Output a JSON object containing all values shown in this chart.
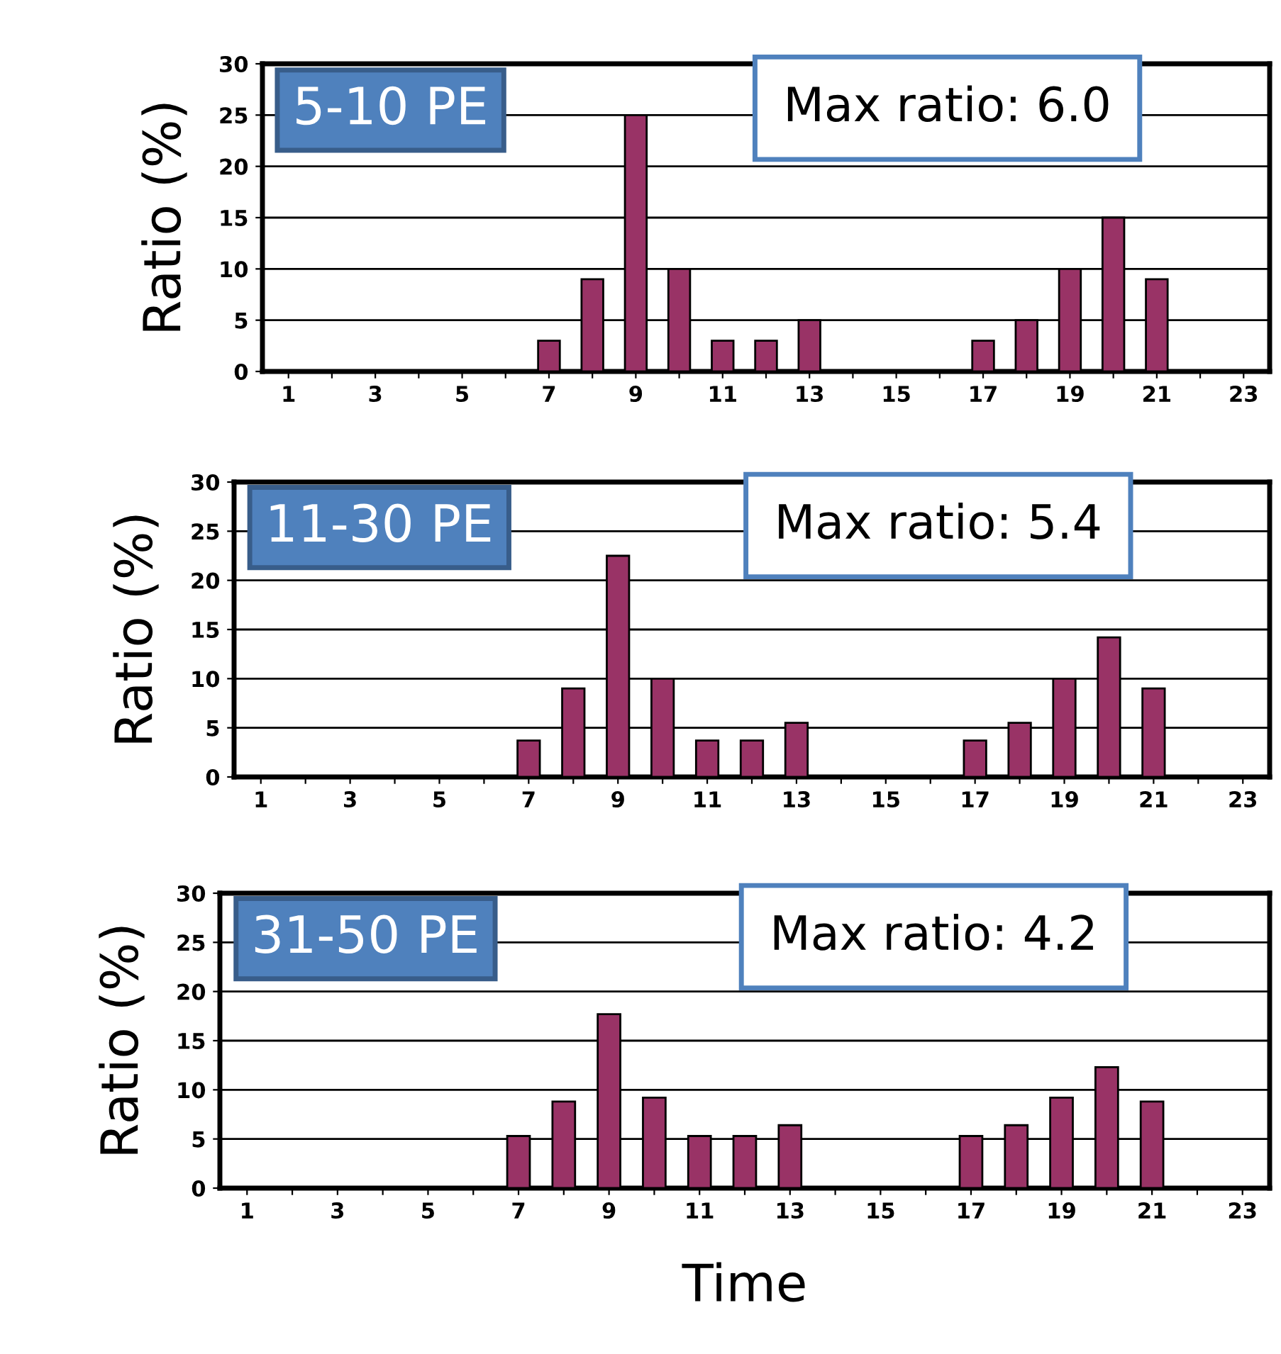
{
  "chart_data": [
    {
      "type": "bar",
      "title": "5-10 PE",
      "ylabel": "Ratio (%)",
      "annotations": [
        "Max ratio: 6.0"
      ],
      "categories": [
        "1",
        null,
        "3",
        null,
        "5",
        null,
        "7",
        null,
        "9",
        null,
        "11",
        null,
        "13",
        null,
        "15",
        null,
        "17",
        null,
        "19",
        null,
        "21",
        null,
        "23"
      ],
      "values": [
        0,
        0,
        0,
        0,
        0,
        0,
        3,
        9,
        25,
        10,
        3,
        3,
        5,
        0,
        0,
        0,
        3,
        5,
        10,
        15,
        9,
        0,
        0
      ],
      "color": "#993366",
      "ylim": [
        0,
        30
      ],
      "yticks": [
        0,
        5,
        10,
        15,
        20,
        25,
        30
      ],
      "grid": "y",
      "legend": false
    },
    {
      "type": "bar",
      "title": "11-30 PE",
      "ylabel": "Ratio (%)",
      "annotations": [
        "Max ratio: 5.4"
      ],
      "categories": [
        "1",
        null,
        "3",
        null,
        "5",
        null,
        "7",
        null,
        "9",
        null,
        "11",
        null,
        "13",
        null,
        "15",
        null,
        "17",
        null,
        "19",
        null,
        "21",
        null,
        "23"
      ],
      "values": [
        0,
        0,
        0,
        0,
        0,
        0,
        3.7,
        9,
        22.5,
        10,
        3.7,
        3.7,
        5.5,
        0,
        0,
        0,
        3.7,
        5.5,
        10,
        14.2,
        9,
        0,
        0
      ],
      "color": "#993366",
      "ylim": [
        0,
        30
      ],
      "yticks": [
        0,
        5,
        10,
        15,
        20,
        25,
        30
      ],
      "grid": "y",
      "legend": false
    },
    {
      "type": "bar",
      "title": "31-50 PE",
      "ylabel": "Ratio (%)",
      "xlabel": "Time",
      "annotations": [
        "Max ratio: 4.2"
      ],
      "categories": [
        "1",
        null,
        "3",
        null,
        "5",
        null,
        "7",
        null,
        "9",
        null,
        "11",
        null,
        "13",
        null,
        "15",
        null,
        "17",
        null,
        "19",
        null,
        "21",
        null,
        "23"
      ],
      "values": [
        0,
        0,
        0,
        0,
        0,
        0,
        5.3,
        8.8,
        17.7,
        9.2,
        5.3,
        5.3,
        6.4,
        0,
        0,
        0,
        5.3,
        6.4,
        9.2,
        12.3,
        8.8,
        0,
        0
      ],
      "color": "#993366",
      "ylim": [
        0,
        30
      ],
      "yticks": [
        0,
        5,
        10,
        15,
        20,
        25,
        30
      ],
      "grid": "y",
      "legend": false
    }
  ]
}
